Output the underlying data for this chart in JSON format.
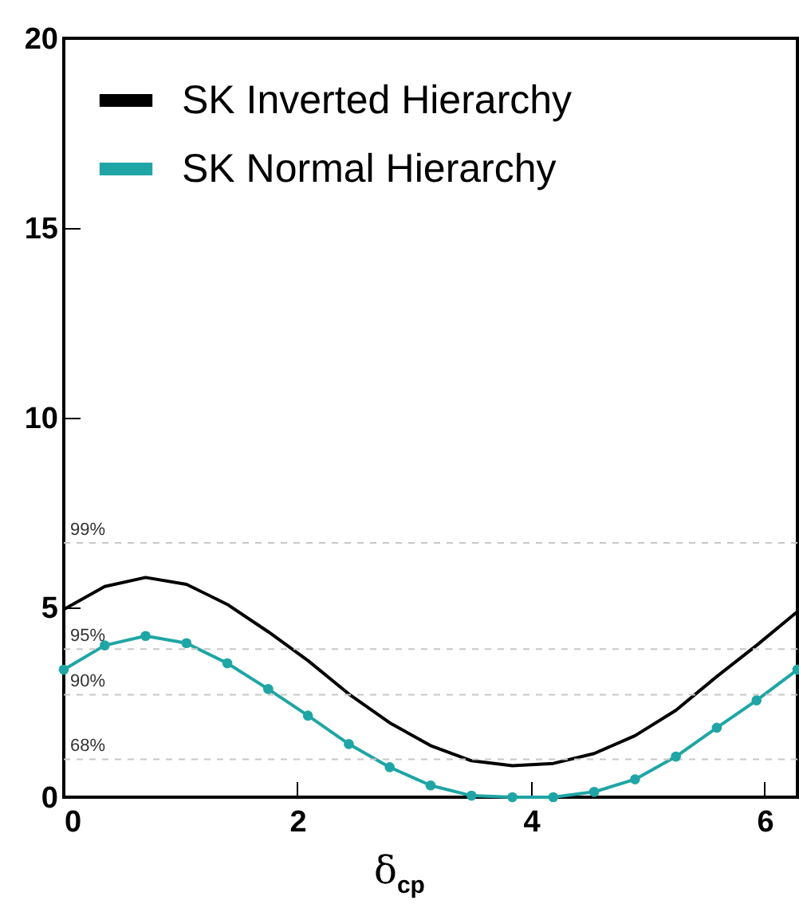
{
  "chart_data": {
    "type": "line",
    "xlabel": "δ$_{cp}$",
    "x": [
      0,
      0.35,
      0.7,
      1.05,
      1.4,
      1.75,
      2.09,
      2.44,
      2.79,
      3.14,
      3.49,
      3.84,
      4.19,
      4.54,
      4.89,
      5.24,
      5.59,
      5.93,
      6.28
    ],
    "series": [
      {
        "name": "SK Inverted Hierarchy",
        "color": "#000000",
        "marker": "none",
        "values": [
          4.95,
          5.55,
          5.79,
          5.61,
          5.08,
          4.36,
          3.6,
          2.72,
          1.96,
          1.36,
          0.96,
          0.83,
          0.89,
          1.15,
          1.62,
          2.29,
          3.18,
          4.0,
          4.89
        ]
      },
      {
        "name": "SK Normal Hierarchy",
        "color": "#1fa5a5",
        "marker": "circle",
        "values": [
          3.36,
          4.0,
          4.25,
          4.06,
          3.53,
          2.85,
          2.15,
          1.4,
          0.79,
          0.31,
          0.04,
          0,
          0,
          0.14,
          0.47,
          1.07,
          1.83,
          2.55,
          3.36
        ]
      }
    ],
    "xlim": [
      0,
      6.28
    ],
    "ylim": [
      0,
      20
    ],
    "xticks": [
      0,
      2,
      4,
      6
    ],
    "yticks": [
      0,
      5,
      10,
      15,
      20
    ],
    "ref_lines": [
      {
        "axis": "y",
        "value": 6.7,
        "color": "#c8c8c8",
        "line_style": "dashed"
      },
      {
        "axis": "y",
        "value": 3.9,
        "color": "#c8c8c8",
        "line_style": "dashed"
      },
      {
        "axis": "y",
        "value": 2.7,
        "color": "#c8c8c8",
        "line_style": "dashed"
      },
      {
        "axis": "y",
        "value": 1.0,
        "color": "#c8c8c8",
        "line_style": "dashed"
      }
    ],
    "annotations": [
      {
        "text": "99%",
        "y": 6.7
      },
      {
        "text": "95%",
        "y": 3.9
      },
      {
        "text": "90%",
        "y": 2.7
      },
      {
        "text": "68%",
        "y": 1.0
      }
    ],
    "grid": false,
    "legend": "top left",
    "line_style": "solid"
  }
}
